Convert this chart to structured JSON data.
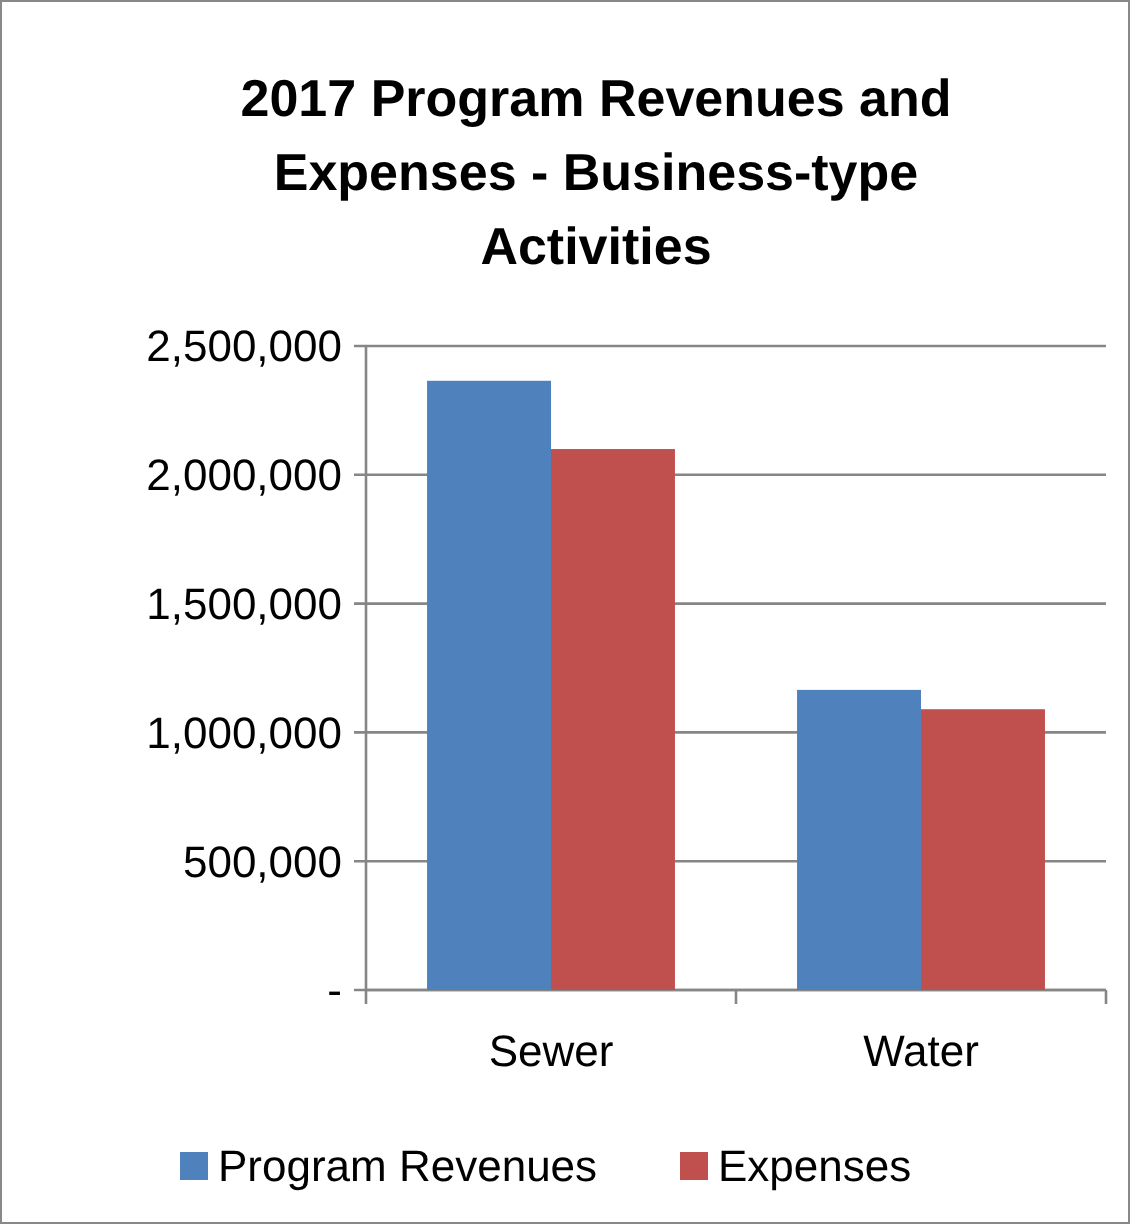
{
  "chart_data": {
    "type": "bar",
    "title": "2017 Program Revenues and Expenses - Business-type Activities",
    "categories": [
      "Sewer",
      "Water"
    ],
    "series": [
      {
        "name": "Program Revenues",
        "color": "#4f81bd",
        "values": [
          2365000,
          1165000
        ]
      },
      {
        "name": "Expenses",
        "color": "#c0504d",
        "values": [
          2100000,
          1090000
        ]
      }
    ],
    "ylim": [
      0,
      2500000
    ],
    "yticks": [
      {
        "value": 0,
        "label": "-"
      },
      {
        "value": 500000,
        "label": "500,000"
      },
      {
        "value": 1000000,
        "label": "1,000,000"
      },
      {
        "value": 1500000,
        "label": "1,500,000"
      },
      {
        "value": 2000000,
        "label": "2,000,000"
      },
      {
        "value": 2500000,
        "label": "2,500,000"
      }
    ],
    "grid": "y",
    "legend": "bottom"
  }
}
